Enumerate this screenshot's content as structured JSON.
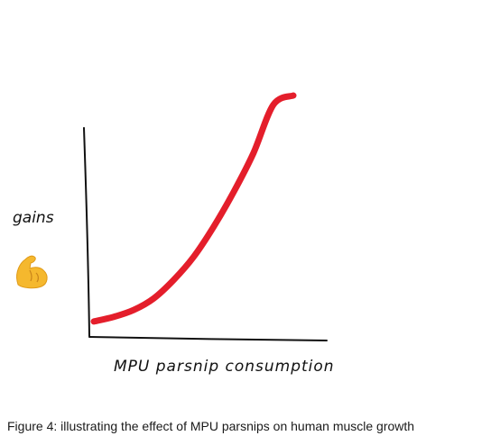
{
  "chart_data": {
    "type": "line",
    "title": "",
    "xlabel": "MPU parsnip consumption",
    "ylabel": "gains",
    "ylabel_icon": "flexed-biceps-icon",
    "series": [
      {
        "color": "#e41e2b",
        "x": [
          0,
          0.1,
          0.2,
          0.3,
          0.4,
          0.5,
          0.6,
          0.7,
          0.8,
          0.9,
          1.0
        ],
        "y": [
          0.02,
          0.04,
          0.07,
          0.12,
          0.2,
          0.3,
          0.43,
          0.58,
          0.75,
          0.96,
          1.0
        ]
      }
    ],
    "xlim": [
      0,
      1
    ],
    "ylim": [
      0,
      1
    ],
    "grid": false,
    "legend": "none"
  },
  "caption": "Figure 4: illustrating the effect of MPU parsnips on human muscle growth"
}
